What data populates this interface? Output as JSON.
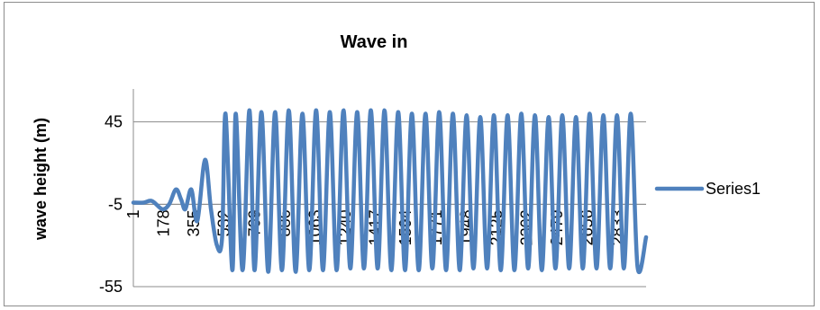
{
  "chart_data": {
    "type": "line",
    "title": "Wave in",
    "xlabel": "",
    "ylabel": "wave height (m)",
    "ylim": [
      -55,
      65
    ],
    "yticks": [
      -55,
      -5,
      45
    ],
    "x_range": [
      1,
      3000
    ],
    "xticks": [
      1,
      178,
      355,
      532,
      709,
      886,
      1063,
      1240,
      1417,
      1594,
      1771,
      1948,
      2125,
      2302,
      2479,
      2656,
      2833
    ],
    "grid": true,
    "legend_position": "right",
    "series": [
      {
        "name": "Series1",
        "color": "#4f81bd",
        "x": [
          1,
          60,
          110,
          170,
          210,
          250,
          280,
          305,
          340,
          375,
          420,
          455,
          490,
          520,
          540,
          580,
          600,
          640,
          680,
          710,
          750,
          790,
          830,
          870,
          910,
          950,
          990,
          1030,
          1070,
          1110,
          1150,
          1190,
          1230,
          1270,
          1310,
          1350,
          1390,
          1430,
          1470,
          1510,
          1550,
          1590,
          1630,
          1670,
          1710,
          1750,
          1790,
          1830,
          1870,
          1910,
          1950,
          1990,
          2030,
          2070,
          2110,
          2150,
          2190,
          2230,
          2270,
          2310,
          2350,
          2390,
          2430,
          2470,
          2510,
          2550,
          2590,
          2630,
          2670,
          2710,
          2750,
          2790,
          2830,
          2870,
          2910,
          2950,
          3000
        ],
        "values": [
          -4,
          -4,
          -3,
          -8,
          -5,
          4,
          -2,
          -8,
          4,
          -15,
          22,
          -8,
          -30,
          -25,
          50,
          -45,
          50,
          -45,
          52,
          -45,
          51,
          -46,
          51,
          -45,
          52,
          -46,
          50,
          -45,
          52,
          -45,
          51,
          -45,
          52,
          -44,
          51,
          -44,
          52,
          -44,
          52,
          -45,
          51,
          -45,
          50,
          -45,
          50,
          -44,
          51,
          -45,
          50,
          -45,
          49,
          -44,
          48,
          -44,
          49,
          -45,
          49,
          -45,
          50,
          -44,
          49,
          -45,
          48,
          -44,
          49,
          -44,
          48,
          -44,
          50,
          -44,
          49,
          -44,
          49,
          -44,
          50,
          -43,
          -25
        ]
      }
    ]
  }
}
